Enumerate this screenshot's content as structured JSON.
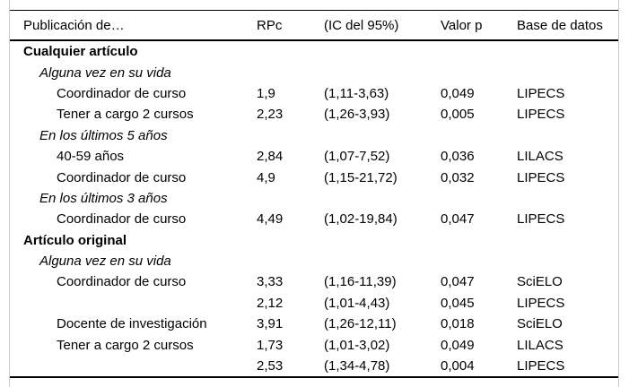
{
  "colors": {
    "background": "#ffffff",
    "text": "#000000",
    "rule": "#000000",
    "frame_border": "#cccccc"
  },
  "table": {
    "columns": [
      {
        "label": "Publicación de…"
      },
      {
        "label": "RPc"
      },
      {
        "label": "(IC del 95%)"
      },
      {
        "label": "Valor p"
      },
      {
        "label": "Base de datos"
      }
    ],
    "rows": [
      {
        "label": "Cualquier artículo",
        "indent": 0,
        "style": "bold",
        "rpc": "",
        "ic": "",
        "p": "",
        "db": ""
      },
      {
        "label": "Alguna vez en su vida",
        "indent": 1,
        "style": "italic",
        "rpc": "",
        "ic": "",
        "p": "",
        "db": ""
      },
      {
        "label": "Coordinador de curso",
        "indent": 2,
        "style": "normal",
        "rpc": "1,9",
        "ic": "(1,11-3,63)",
        "p": "0,049",
        "db": "LIPECS"
      },
      {
        "label": "Tener a cargo 2 cursos",
        "indent": 2,
        "style": "normal",
        "rpc": "2,23",
        "ic": "(1,26-3,93)",
        "p": "0,005",
        "db": "LIPECS"
      },
      {
        "label": "En los últimos 5 años",
        "indent": 1,
        "style": "italic",
        "rpc": "",
        "ic": "",
        "p": "",
        "db": ""
      },
      {
        "label": "40-59 años",
        "indent": 2,
        "style": "normal",
        "rpc": "2,84",
        "ic": "(1,07-7,52)",
        "p": "0,036",
        "db": "LILACS"
      },
      {
        "label": "Coordinador de curso",
        "indent": 2,
        "style": "normal",
        "rpc": "4,9",
        "ic": "(1,15-21,72)",
        "p": "0,032",
        "db": "LIPECS"
      },
      {
        "label": "En los últimos 3 años",
        "indent": 1,
        "style": "italic",
        "rpc": "",
        "ic": "",
        "p": "",
        "db": ""
      },
      {
        "label": "Coordinador de curso",
        "indent": 2,
        "style": "normal",
        "rpc": "4,49",
        "ic": "(1,02-19,84)",
        "p": "0,047",
        "db": "LIPECS"
      },
      {
        "label": "Artículo original",
        "indent": 0,
        "style": "bold",
        "rpc": "",
        "ic": "",
        "p": "",
        "db": ""
      },
      {
        "label": "Alguna vez en su vida",
        "indent": 1,
        "style": "italic",
        "rpc": "",
        "ic": "",
        "p": "",
        "db": ""
      },
      {
        "label": "Coordinador de curso",
        "indent": 2,
        "style": "normal",
        "rpc": "3,33",
        "ic": "(1,16-11,39)",
        "p": "0,047",
        "db": "SciELO"
      },
      {
        "label": "",
        "indent": 2,
        "style": "normal",
        "rpc": "2,12",
        "ic": "(1,01-4,43)",
        "p": "0,045",
        "db": "LIPECS"
      },
      {
        "label": "Docente de investigación",
        "indent": 2,
        "style": "normal",
        "rpc": "3,91",
        "ic": "(1,26-12,11)",
        "p": "0,018",
        "db": "SciELO"
      },
      {
        "label": "Tener a cargo 2 cursos",
        "indent": 2,
        "style": "normal",
        "rpc": "1,73",
        "ic": "(1,01-3,02)",
        "p": "0,049",
        "db": "LILACS"
      },
      {
        "label": "",
        "indent": 2,
        "style": "normal",
        "rpc": "2,53",
        "ic": "(1,34-4,78)",
        "p": "0,004",
        "db": "LIPECS"
      }
    ]
  }
}
